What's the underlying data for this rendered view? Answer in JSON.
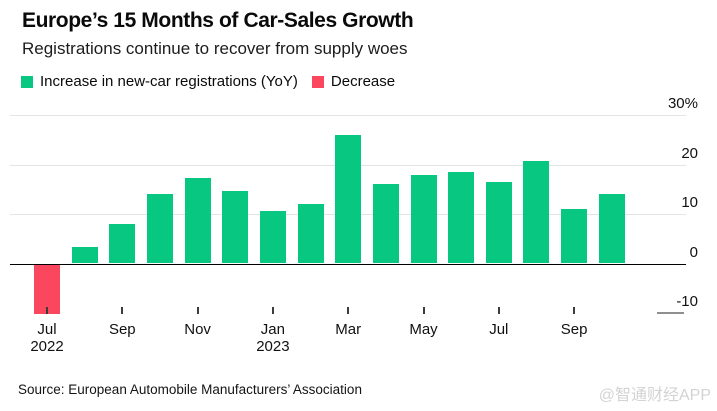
{
  "header": {
    "title": "Europe’s 15 Months of Car-Sales Growth",
    "subtitle": "Registrations continue to recover from supply woes"
  },
  "footer": {
    "source": "Source: European Automobile Manufacturers’ Association",
    "watermark": "@智通财经APP"
  },
  "chart_data": {
    "type": "bar",
    "title": "Europe’s 15 Months of Car-Sales Growth",
    "subtitle": "Registrations continue to recover from supply woes",
    "legend_position": "top",
    "grid": true,
    "unit": "%",
    "ylim": [
      -13,
      32
    ],
    "colors": {
      "increase": "#08c781",
      "decrease": "#fa475e",
      "gridline": "#e4e4e4",
      "zero_axis": "#000000",
      "negative_stub": "#8f8f8f",
      "watermark": "#d3d3d3"
    },
    "legend": [
      {
        "label": "Increase in new-car registrations (YoY)",
        "color": "#08c781"
      },
      {
        "label": "Decrease",
        "color": "#fa475e"
      }
    ],
    "categories": [
      "Jul 2022",
      "Aug 2022",
      "Sep 2022",
      "Oct 2022",
      "Nov 2022",
      "Dec 2022",
      "Jan 2023",
      "Feb 2023",
      "Mar 2023",
      "Apr 2023",
      "May 2023",
      "Jun 2023",
      "Jul 2023",
      "Aug 2023",
      "Sep 2023",
      "Oct 2023"
    ],
    "values": [
      -10.1,
      3.4,
      8.0,
      14.0,
      17.3,
      14.6,
      10.6,
      12.0,
      26.0,
      16.0,
      18.0,
      18.5,
      16.5,
      20.8,
      11.0,
      14.0
    ],
    "yticks": [
      {
        "value": 30,
        "label": "30%"
      },
      {
        "value": 20,
        "label": "20"
      },
      {
        "value": 10,
        "label": "10"
      },
      {
        "value": 0,
        "label": "0"
      },
      {
        "value": -10,
        "label": "-10"
      }
    ],
    "x_ticks": [
      {
        "index": 0,
        "label": "Jul",
        "year": "2022"
      },
      {
        "index": 2,
        "label": "Sep"
      },
      {
        "index": 4,
        "label": "Nov"
      },
      {
        "index": 6,
        "label": "Jan",
        "year": "2023"
      },
      {
        "index": 8,
        "label": "Mar"
      },
      {
        "index": 10,
        "label": "May"
      },
      {
        "index": 12,
        "label": "Jul"
      },
      {
        "index": 14,
        "label": "Sep"
      }
    ]
  }
}
